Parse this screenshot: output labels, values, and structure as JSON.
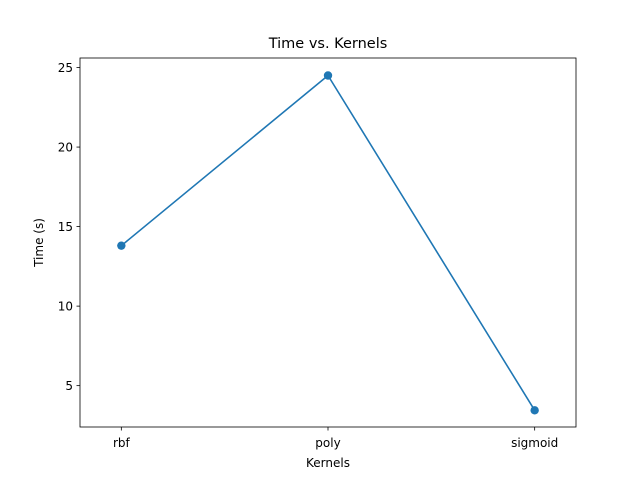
{
  "chart_data": {
    "type": "line",
    "title": "Time vs. Kernels",
    "xlabel": "Kernels",
    "ylabel": "Time (s)",
    "categories": [
      "rbf",
      "poly",
      "sigmoid"
    ],
    "series": [
      {
        "values": [
          13.8,
          24.5,
          3.45
        ],
        "color": "#1f77b4",
        "marker": "circle"
      }
    ],
    "ylim": [
      2.4,
      25.6
    ],
    "yticks": [
      5,
      10,
      15,
      20,
      25
    ],
    "grid": false,
    "legend": false
  }
}
